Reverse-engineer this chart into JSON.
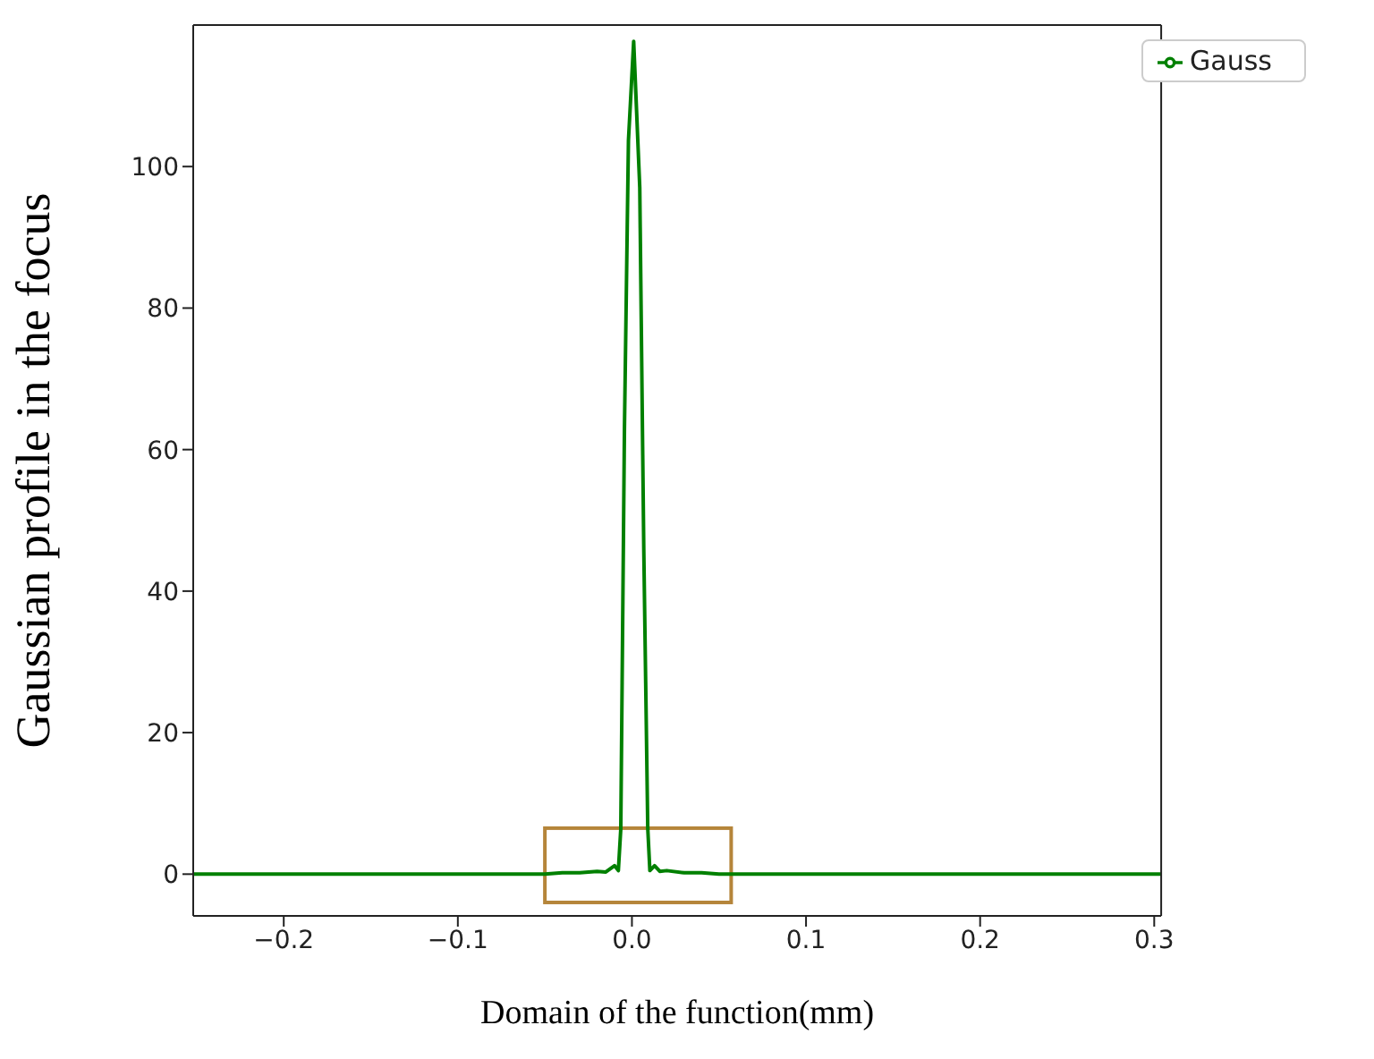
{
  "chart_data": {
    "type": "line",
    "xlabel": "Domain of the function(mm)",
    "ylabel": "Gaussian profile in the focus",
    "x": [
      -0.252,
      -0.1,
      -0.05,
      -0.04,
      -0.03,
      -0.02,
      -0.015,
      -0.01,
      -0.0078,
      -0.0064,
      -0.0043,
      -0.002,
      0.001,
      0.0045,
      0.0068,
      0.0091,
      0.0103,
      0.013,
      0.016,
      0.02,
      0.03,
      0.04,
      0.05,
      0.1,
      0.304
    ],
    "series": [
      {
        "name": "Gauss",
        "color": "#008000",
        "values": [
          0,
          0,
          0,
          0.2,
          0.2,
          0.4,
          0.3,
          1.2,
          0.5,
          6.4,
          63,
          103.7,
          117.7,
          97,
          46,
          6.4,
          0.5,
          1.2,
          0.4,
          0.5,
          0.2,
          0.2,
          0,
          0,
          0
        ]
      }
    ],
    "xlim": [
      -0.252,
      0.304
    ],
    "ylim": [
      -5.9,
      120
    ],
    "xticks": [
      {
        "value": -0.2,
        "label": "−0.2"
      },
      {
        "value": -0.1,
        "label": "−0.1"
      },
      {
        "value": 0,
        "label": "0.0"
      },
      {
        "value": 0.1,
        "label": "0.1"
      },
      {
        "value": 0.2,
        "label": "0.2"
      },
      {
        "value": 0.3,
        "label": "0.3"
      }
    ],
    "yticks": [
      0,
      20,
      40,
      60,
      80,
      100
    ],
    "legend": "top right",
    "grid": false,
    "marker": "none",
    "line_style": "solid"
  }
}
